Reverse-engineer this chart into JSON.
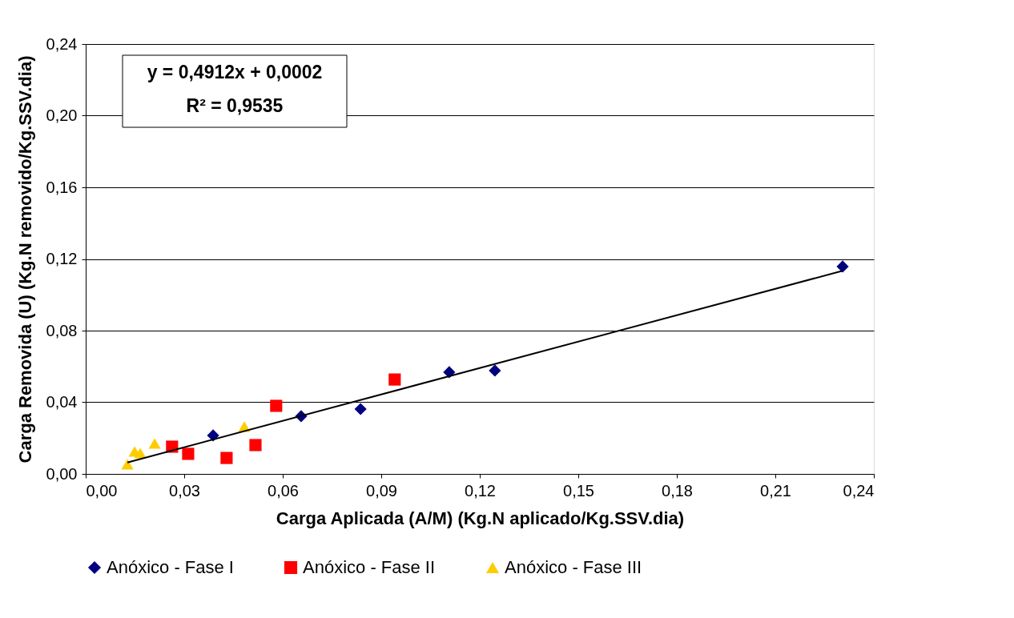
{
  "chart_data": {
    "type": "scatter",
    "xlabel": "Carga Aplicada (A/M) (Kg.N aplicado/Kg.SSV.dia)",
    "ylabel": "Carga Removida (U) (Kg.N removido/Kg.SSV.dia)",
    "xlim": [
      0,
      0.24
    ],
    "ylim": [
      0,
      0.24
    ],
    "xticks": [
      {
        "value": 0,
        "label": "0,00"
      },
      {
        "value": 0.03,
        "label": "0,03"
      },
      {
        "value": 0.06,
        "label": "0,06"
      },
      {
        "value": 0.09,
        "label": "0,09"
      },
      {
        "value": 0.12,
        "label": "0,12"
      },
      {
        "value": 0.15,
        "label": "0,15"
      },
      {
        "value": 0.18,
        "label": "0,18"
      },
      {
        "value": 0.21,
        "label": "0,21"
      },
      {
        "value": 0.24,
        "label": "0,24"
      }
    ],
    "yticks": [
      {
        "value": 0,
        "label": "0,00"
      },
      {
        "value": 0.04,
        "label": "0,04"
      },
      {
        "value": 0.08,
        "label": "0,08"
      },
      {
        "value": 0.12,
        "label": "0,12"
      },
      {
        "value": 0.16,
        "label": "0,16"
      },
      {
        "value": 0.2,
        "label": "0,20"
      },
      {
        "value": 0.24,
        "label": "0,24"
      }
    ],
    "grid": "y",
    "legend": "bottom",
    "annotations": [
      "y = 0,4912x + 0,0002",
      "R² = 0,9535"
    ],
    "series": [
      {
        "name": "Anóxico - Fase I",
        "color": "#000080",
        "marker": "diamond",
        "x": [
          0.0388,
          0.0656,
          0.0837,
          0.1107,
          0.1246,
          0.2305
        ],
        "values": [
          0.0215,
          0.0322,
          0.0362,
          0.0568,
          0.0577,
          0.1158
        ]
      },
      {
        "name": "Anóxico - Fase II",
        "color": "#ff0000",
        "marker": "square",
        "x": [
          0.0263,
          0.0312,
          0.0429,
          0.0517,
          0.058,
          0.0941
        ],
        "values": [
          0.0152,
          0.0112,
          0.0089,
          0.0161,
          0.038,
          0.0527
        ]
      },
      {
        "name": "Anóxico - Fase III",
        "color": "#ffcc00",
        "marker": "triangle",
        "x": [
          0.0127,
          0.0149,
          0.0166,
          0.021,
          0.0483
        ],
        "values": [
          0.0054,
          0.0125,
          0.0116,
          0.017,
          0.0264
        ]
      },
      {
        "type": "line",
        "color": "#000000",
        "marker": "none",
        "line_style": "solid",
        "x": [
          0.0127,
          0.2305
        ],
        "values": [
          0.0064,
          0.1134
        ]
      }
    ]
  }
}
